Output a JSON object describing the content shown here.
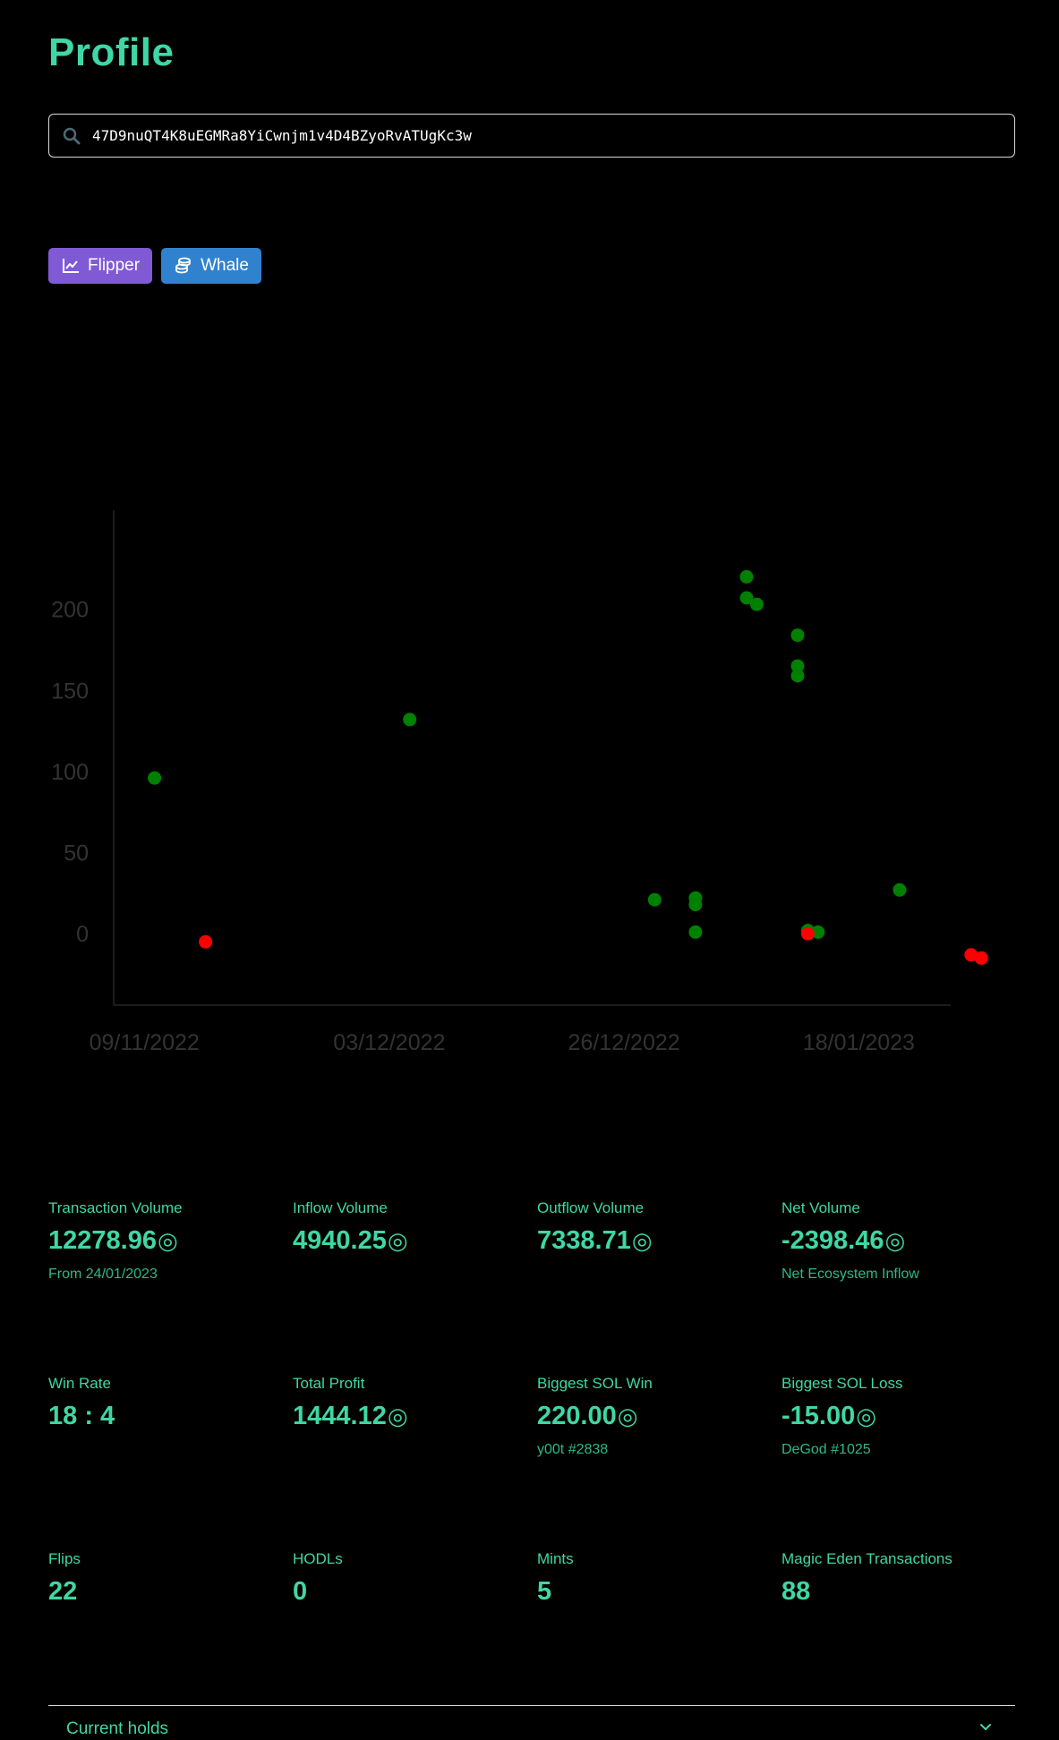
{
  "page": {
    "title": "Profile"
  },
  "search": {
    "value": "47D9nuQT4K8uEGMRa8YiCwnjm1v4D4BZyoRvATUgKc3w",
    "icon": "search-icon"
  },
  "badges": [
    {
      "label": "Flipper",
      "icon": "chart-line-icon",
      "color": "#805ad5"
    },
    {
      "label": "Whale",
      "icon": "coins-icon",
      "color": "#3182ce"
    }
  ],
  "colors": {
    "accent": "#3fd7a5",
    "gain": "#008000",
    "loss": "#ff0000",
    "axis_text": "#333333"
  },
  "chart_data": {
    "type": "scatter",
    "x_format": "DD/MM/YYYY",
    "x_tick_labels": [
      "09/11/2022",
      "03/12/2022",
      "26/12/2022",
      "18/01/2023"
    ],
    "y_ticks": [
      0,
      50,
      100,
      150,
      200
    ],
    "ylim": [
      -44,
      250
    ],
    "xlim": [
      "2022-11-06",
      "2023-01-27"
    ],
    "grid": false,
    "legend": false,
    "series": [
      {
        "color": "#008000",
        "points": [
          {
            "x": "2022-11-10",
            "y": 96
          },
          {
            "x": "2022-12-05",
            "y": 132
          },
          {
            "x": "2022-12-29",
            "y": 21
          },
          {
            "x": "2023-01-02",
            "y": 18
          },
          {
            "x": "2023-01-02",
            "y": 22
          },
          {
            "x": "2023-01-02",
            "y": 1
          },
          {
            "x": "2023-01-07",
            "y": 220
          },
          {
            "x": "2023-01-07",
            "y": 207
          },
          {
            "x": "2023-01-08",
            "y": 203
          },
          {
            "x": "2023-01-12",
            "y": 184
          },
          {
            "x": "2023-01-12",
            "y": 165
          },
          {
            "x": "2023-01-12",
            "y": 159
          },
          {
            "x": "2023-01-13",
            "y": 2
          },
          {
            "x": "2023-01-14",
            "y": 1
          },
          {
            "x": "2023-01-22",
            "y": 27
          }
        ]
      },
      {
        "color": "#ff0000",
        "points": [
          {
            "x": "2022-11-15",
            "y": -5
          },
          {
            "x": "2023-01-13",
            "y": 0
          },
          {
            "x": "2023-01-29",
            "y": -13
          },
          {
            "x": "2023-01-30",
            "y": -15
          }
        ]
      }
    ]
  },
  "stats": [
    {
      "label": "Transaction Volume",
      "value": "12278.96",
      "unit": "◎",
      "sub": "From 24/01/2023"
    },
    {
      "label": "Inflow Volume",
      "value": "4940.25",
      "unit": "◎",
      "sub": ""
    },
    {
      "label": "Outflow Volume",
      "value": "7338.71",
      "unit": "◎",
      "sub": ""
    },
    {
      "label": "Net Volume",
      "value": "-2398.46",
      "unit": "◎",
      "sub": "Net Ecosystem Inflow"
    },
    {
      "label": "Win Rate",
      "value": "18 : 4",
      "unit": "",
      "sub": ""
    },
    {
      "label": "Total Profit",
      "value": "1444.12",
      "unit": "◎",
      "sub": ""
    },
    {
      "label": "Biggest SOL Win",
      "value": "220.00",
      "unit": "◎",
      "sub": "y00t #2838"
    },
    {
      "label": "Biggest SOL Loss",
      "value": "-15.00",
      "unit": "◎",
      "sub": "DeGod #1025"
    },
    {
      "label": "Flips",
      "value": "22",
      "unit": "",
      "sub": ""
    },
    {
      "label": "HODLs",
      "value": "0",
      "unit": "",
      "sub": ""
    },
    {
      "label": "Mints",
      "value": "5",
      "unit": "",
      "sub": ""
    },
    {
      "label": "Magic Eden Transactions",
      "value": "88",
      "unit": "",
      "sub": ""
    }
  ],
  "accordion": {
    "label": "Current holds",
    "icon": "chevron-down-icon"
  }
}
